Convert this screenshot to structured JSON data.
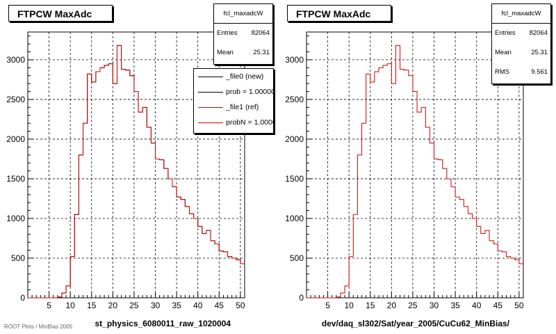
{
  "colors": {
    "new": "#000000",
    "ref": "#cc0000",
    "grid": "#000000"
  },
  "footer": "ROOT Plots / MinBias 2005",
  "chart_data": [
    {
      "type": "histogram",
      "title": "FTPCW MaxAdc",
      "xlabel": "st_physics_6080011_raw_1020004",
      "ylabel": "",
      "xlim": [
        0,
        51
      ],
      "ylim": [
        0,
        3350
      ],
      "xticks": [
        5,
        10,
        15,
        20,
        25,
        30,
        35,
        40,
        45,
        50
      ],
      "yticks": [
        0,
        500,
        1000,
        1500,
        2000,
        2500,
        3000
      ],
      "grid": true,
      "stats": {
        "name": "fcl_maxadcW",
        "Entries": "82064",
        "Mean": "25.31"
      },
      "legend": {
        "placement": "top-right",
        "entries": [
          {
            "label": "_file0 (new)",
            "color": "#000000"
          },
          {
            "label": "prob = 1.000000",
            "color": "#000000"
          },
          {
            "label": "_file1 (ref)",
            "color": "#cc0000"
          },
          {
            "label": "probN = 1.000000",
            "color": "#cc0000"
          }
        ]
      },
      "bin_width": 1,
      "x": [
        0,
        1,
        2,
        3,
        4,
        5,
        6,
        7,
        8,
        9,
        10,
        11,
        12,
        13,
        14,
        15,
        16,
        17,
        18,
        19,
        20,
        21,
        22,
        23,
        24,
        25,
        26,
        27,
        28,
        29,
        30,
        31,
        32,
        33,
        34,
        35,
        36,
        37,
        38,
        39,
        40,
        41,
        42,
        43,
        44,
        45,
        46,
        47,
        48,
        49,
        50
      ],
      "series": [
        {
          "name": "_file0 (new)",
          "values": [
            0,
            0,
            0,
            0,
            0,
            0,
            0,
            10,
            60,
            150,
            520,
            1050,
            1800,
            2200,
            2820,
            2720,
            2850,
            2900,
            2930,
            2950,
            2700,
            3180,
            2880,
            2870,
            2800,
            2600,
            2340,
            2400,
            2150,
            1950,
            1750,
            1740,
            1630,
            1500,
            1400,
            1270,
            1240,
            1150,
            1060,
            1000,
            900,
            810,
            850,
            720,
            680,
            590,
            580,
            520,
            500,
            480,
            430
          ]
        },
        {
          "name": "_file1 (ref)",
          "values": [
            0,
            0,
            0,
            0,
            0,
            0,
            0,
            10,
            60,
            150,
            520,
            1050,
            1800,
            2200,
            2820,
            2720,
            2850,
            2900,
            2930,
            2950,
            2700,
            3180,
            2880,
            2870,
            2800,
            2600,
            2340,
            2400,
            2150,
            1950,
            1750,
            1740,
            1630,
            1500,
            1400,
            1270,
            1240,
            1150,
            1060,
            1000,
            900,
            810,
            850,
            720,
            680,
            590,
            580,
            520,
            500,
            480,
            430
          ]
        }
      ]
    },
    {
      "type": "histogram",
      "title": "FTPCW MaxAdc",
      "xlabel": "dev/daq_sl302/Sat/year_2005/CuCu62_MinBias/",
      "ylabel": "",
      "xlim": [
        0,
        51
      ],
      "ylim": [
        0,
        3350
      ],
      "xticks": [
        5,
        10,
        15,
        20,
        25,
        30,
        35,
        40,
        45,
        50
      ],
      "yticks": [
        0,
        500,
        1000,
        1500,
        2000,
        2500,
        3000
      ],
      "grid": true,
      "stats": {
        "name": "fcl_maxadcW",
        "Entries": "82064",
        "Mean": "25.31",
        "RMS": "9.561"
      },
      "bin_width": 1,
      "x": [
        0,
        1,
        2,
        3,
        4,
        5,
        6,
        7,
        8,
        9,
        10,
        11,
        12,
        13,
        14,
        15,
        16,
        17,
        18,
        19,
        20,
        21,
        22,
        23,
        24,
        25,
        26,
        27,
        28,
        29,
        30,
        31,
        32,
        33,
        34,
        35,
        36,
        37,
        38,
        39,
        40,
        41,
        42,
        43,
        44,
        45,
        46,
        47,
        48,
        49,
        50
      ],
      "series": [
        {
          "name": "",
          "values": [
            0,
            0,
            0,
            0,
            0,
            0,
            0,
            10,
            60,
            150,
            520,
            1050,
            1800,
            2200,
            2820,
            2720,
            2850,
            2900,
            2930,
            2950,
            2700,
            3180,
            2880,
            2870,
            2800,
            2600,
            2340,
            2400,
            2150,
            1950,
            1750,
            1740,
            1630,
            1500,
            1400,
            1270,
            1240,
            1150,
            1060,
            1000,
            900,
            810,
            850,
            720,
            680,
            590,
            580,
            520,
            500,
            480,
            430
          ]
        }
      ]
    }
  ]
}
